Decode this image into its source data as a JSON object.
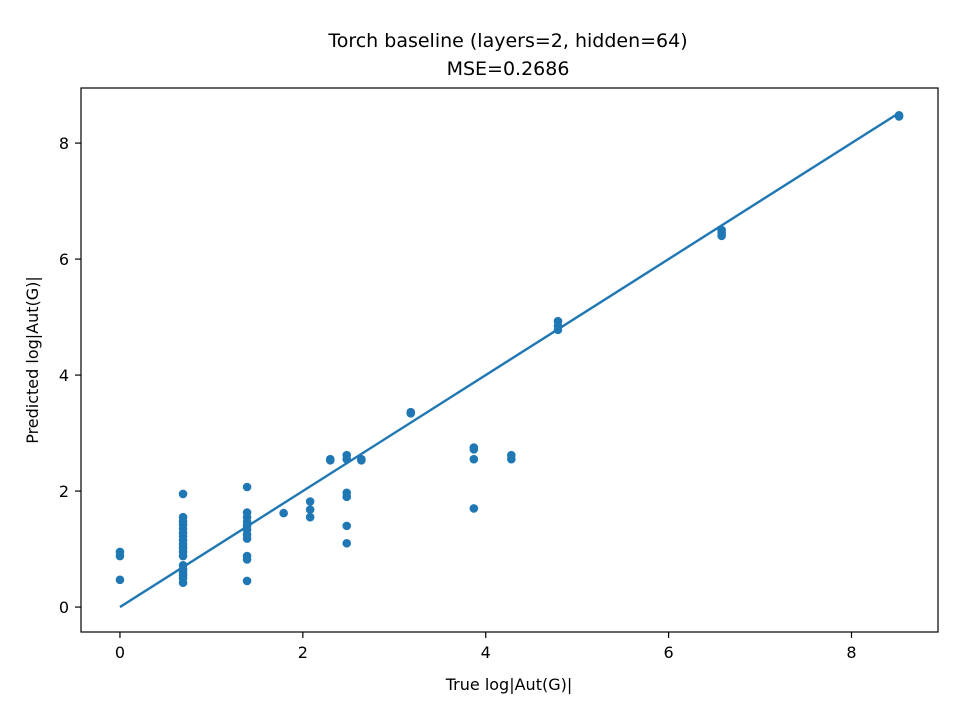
{
  "chart_data": {
    "type": "scatter",
    "title": "Torch baseline (layers=2, hidden=64)",
    "subtitle": "MSE=0.2686",
    "xlabel": "True log|Aut(G)|",
    "ylabel": "Predicted log|Aut(G)|",
    "xlim": [
      -0.426,
      8.946
    ],
    "ylim": [
      -0.43,
      8.95
    ],
    "xticks": [
      0,
      2,
      4,
      6,
      8
    ],
    "yticks": [
      0,
      2,
      4,
      6,
      8
    ],
    "grid": false,
    "point_color": "#1f77b4",
    "line_color": "#1f77b4",
    "reference_line": {
      "x": [
        0,
        8.52
      ],
      "y": [
        0,
        8.52
      ]
    },
    "points": [
      [
        0,
        0.95
      ],
      [
        0,
        0.88
      ],
      [
        0,
        0.47
      ],
      [
        0.69,
        1.95
      ],
      [
        0.69,
        1.55
      ],
      [
        0.69,
        1.48
      ],
      [
        0.69,
        1.42
      ],
      [
        0.69,
        1.35
      ],
      [
        0.69,
        1.28
      ],
      [
        0.69,
        1.22
      ],
      [
        0.69,
        1.15
      ],
      [
        0.69,
        1.08
      ],
      [
        0.69,
        1.02
      ],
      [
        0.69,
        0.95
      ],
      [
        0.69,
        0.88
      ],
      [
        0.69,
        0.72
      ],
      [
        0.69,
        0.65
      ],
      [
        0.69,
        0.6
      ],
      [
        0.69,
        0.55
      ],
      [
        0.69,
        0.5
      ],
      [
        0.69,
        0.42
      ],
      [
        1.39,
        2.07
      ],
      [
        1.39,
        1.63
      ],
      [
        1.39,
        1.55
      ],
      [
        1.39,
        1.47
      ],
      [
        1.39,
        1.4
      ],
      [
        1.39,
        1.33
      ],
      [
        1.39,
        1.25
      ],
      [
        1.39,
        1.18
      ],
      [
        1.39,
        0.88
      ],
      [
        1.39,
        0.82
      ],
      [
        1.39,
        0.45
      ],
      [
        1.79,
        1.62
      ],
      [
        2.08,
        1.82
      ],
      [
        2.08,
        1.68
      ],
      [
        2.08,
        1.55
      ],
      [
        2.3,
        2.55
      ],
      [
        2.3,
        2.53
      ],
      [
        2.48,
        2.62
      ],
      [
        2.48,
        2.55
      ],
      [
        2.48,
        1.97
      ],
      [
        2.48,
        1.9
      ],
      [
        2.48,
        1.4
      ],
      [
        2.48,
        1.1
      ],
      [
        2.64,
        2.55
      ],
      [
        2.64,
        2.53
      ],
      [
        3.18,
        3.36
      ],
      [
        3.18,
        3.34
      ],
      [
        3.87,
        2.75
      ],
      [
        3.87,
        2.72
      ],
      [
        3.87,
        2.55
      ],
      [
        3.87,
        1.7
      ],
      [
        4.28,
        2.62
      ],
      [
        4.28,
        2.55
      ],
      [
        4.79,
        4.93
      ],
      [
        4.79,
        4.85
      ],
      [
        4.79,
        4.78
      ],
      [
        6.58,
        6.5
      ],
      [
        6.58,
        6.45
      ],
      [
        6.58,
        6.4
      ],
      [
        8.52,
        8.48
      ],
      [
        8.52,
        8.46
      ]
    ]
  }
}
